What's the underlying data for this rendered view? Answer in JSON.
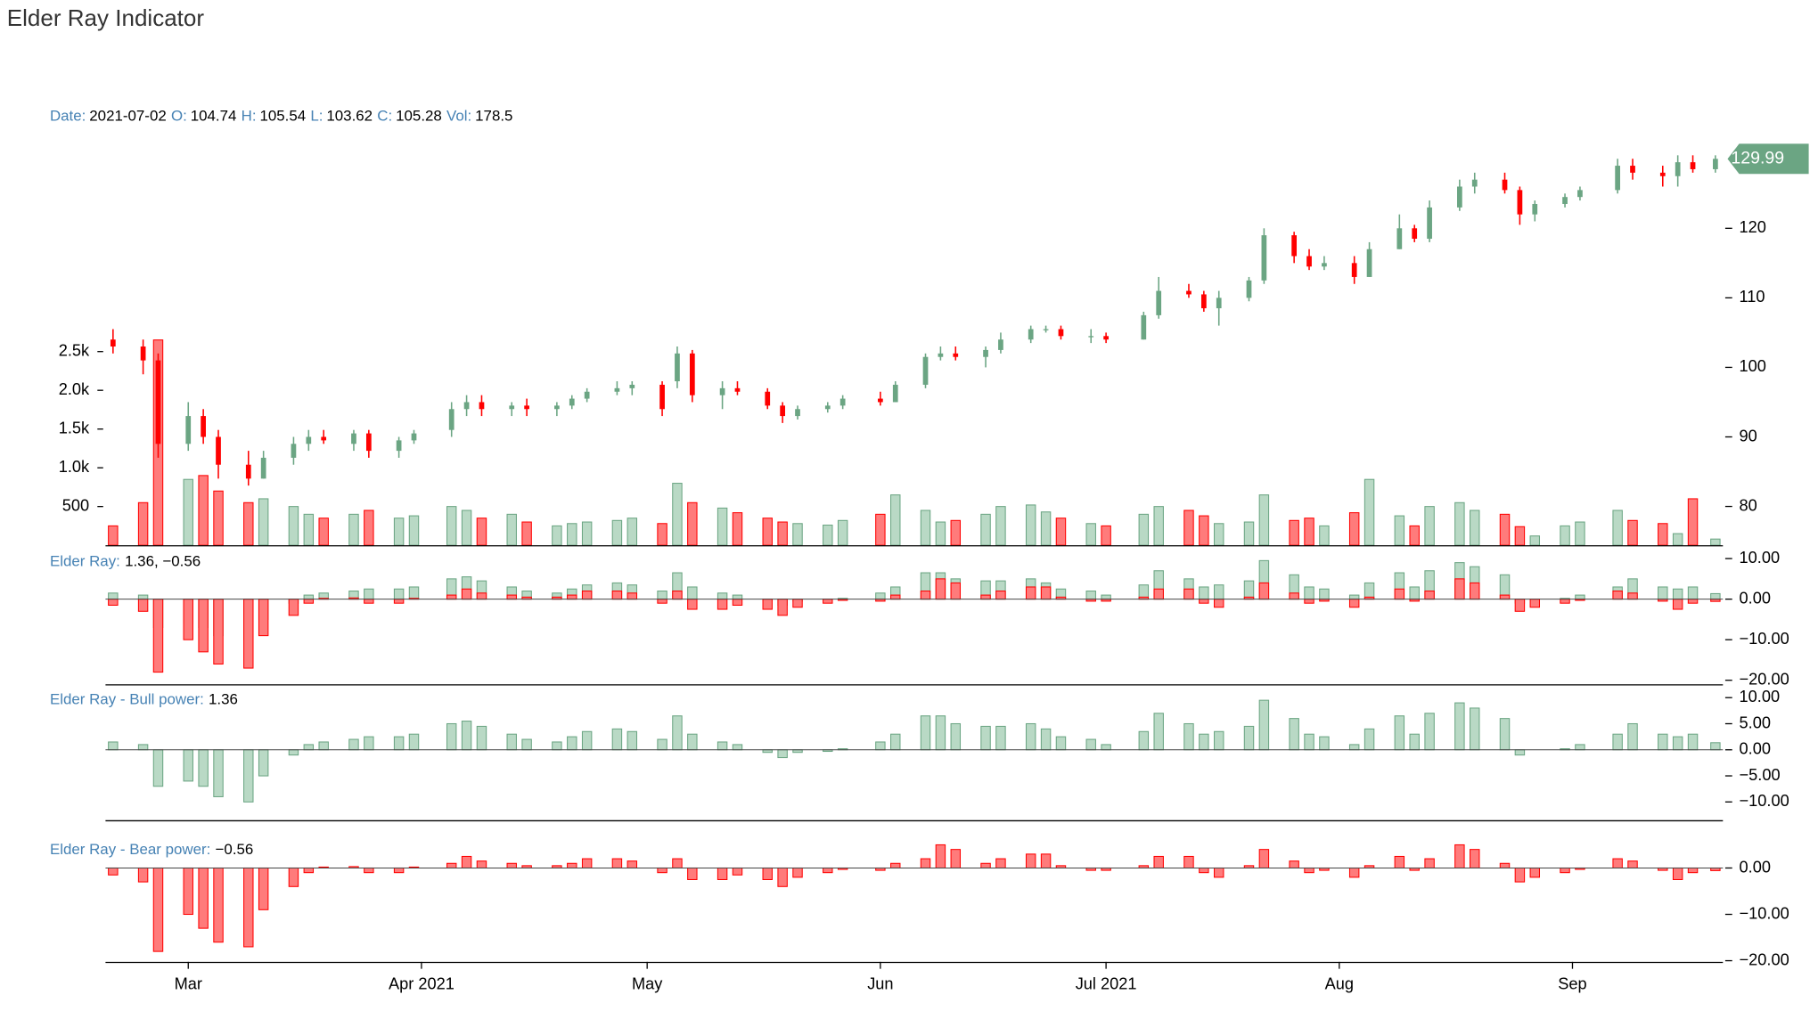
{
  "chart_data": {
    "type": "candlestick",
    "title": "Elder Ray Indicator",
    "header": [
      {
        "label": "Date:",
        "value": "2021-07-02"
      },
      {
        "label": "O:",
        "value": 104.74
      },
      {
        "label": "H:",
        "value": 105.54
      },
      {
        "label": "L:",
        "value": 103.62
      },
      {
        "label": "C:",
        "value": 105.28
      },
      {
        "label": "Vol:",
        "value": 178.5
      }
    ],
    "up_color": "#6ba583",
    "down_color": "#ff0000",
    "x": [
      "2021-02-19",
      "2021-02-23",
      "2021-02-25",
      "2021-03-01",
      "2021-03-03",
      "2021-03-05",
      "2021-03-09",
      "2021-03-11",
      "2021-03-15",
      "2021-03-17",
      "2021-03-19",
      "2021-03-23",
      "2021-03-25",
      "2021-03-29",
      "2021-03-31",
      "2021-04-05",
      "2021-04-07",
      "2021-04-09",
      "2021-04-13",
      "2021-04-15",
      "2021-04-19",
      "2021-04-21",
      "2021-04-23",
      "2021-04-27",
      "2021-04-29",
      "2021-05-03",
      "2021-05-05",
      "2021-05-07",
      "2021-05-11",
      "2021-05-13",
      "2021-05-17",
      "2021-05-19",
      "2021-05-21",
      "2021-05-25",
      "2021-05-27",
      "2021-06-01",
      "2021-06-03",
      "2021-06-07",
      "2021-06-09",
      "2021-06-11",
      "2021-06-15",
      "2021-06-17",
      "2021-06-21",
      "2021-06-23",
      "2021-06-25",
      "2021-06-29",
      "2021-07-01",
      "2021-07-06",
      "2021-07-08",
      "2021-07-12",
      "2021-07-14",
      "2021-07-16",
      "2021-07-20",
      "2021-07-22",
      "2021-07-26",
      "2021-07-28",
      "2021-07-30",
      "2021-08-03",
      "2021-08-05",
      "2021-08-09",
      "2021-08-11",
      "2021-08-13",
      "2021-08-17",
      "2021-08-19",
      "2021-08-23",
      "2021-08-25",
      "2021-08-27",
      "2021-08-31",
      "2021-09-02",
      "2021-09-07",
      "2021-09-09",
      "2021-09-13",
      "2021-09-15",
      "2021-09-17",
      "2021-09-20"
    ],
    "xlim": [
      "2021-02-18",
      "2021-09-21"
    ],
    "xticks": [
      {
        "value": "2021-03-01",
        "label": "Mar"
      },
      {
        "value": "2021-04-01",
        "label": "Apr 2021"
      },
      {
        "value": "2021-05-01",
        "label": "May"
      },
      {
        "value": "2021-06-01",
        "label": "Jun"
      },
      {
        "value": "2021-07-01",
        "label": "Jul 2021"
      },
      {
        "value": "2021-08-01",
        "label": "Aug"
      },
      {
        "value": "2021-09-01",
        "label": "Sep"
      }
    ],
    "open": [
      104,
      103,
      101,
      89,
      93,
      90,
      86,
      84,
      87,
      89,
      90,
      89,
      90.5,
      88,
      89.5,
      91,
      94,
      95,
      94,
      94.5,
      94,
      94.5,
      95.5,
      96.5,
      97,
      97.5,
      98,
      102,
      96,
      97,
      96.5,
      94.5,
      93,
      94,
      94.5,
      95.5,
      95,
      97.5,
      101.5,
      102,
      101.5,
      102.5,
      104,
      105.5,
      105.5,
      104.5,
      104.5,
      104,
      107.5,
      111,
      110.5,
      108.5,
      110,
      112.5,
      119,
      116,
      114.5,
      115,
      113,
      117,
      120,
      118.5,
      123,
      126,
      127,
      125.5,
      122,
      123.5,
      124.5,
      125.5,
      129,
      128,
      127.5,
      129.5,
      128.5
    ],
    "high": [
      105.5,
      104,
      102,
      95,
      94,
      91,
      88,
      88,
      90,
      91,
      91,
      91,
      91,
      90,
      91,
      95,
      96,
      96,
      95,
      95.5,
      95,
      96,
      97,
      98,
      98,
      98,
      103,
      102.5,
      98,
      98,
      97,
      95,
      94.5,
      95,
      96,
      96.5,
      98,
      102,
      103,
      103,
      103,
      105,
      106,
      106,
      106,
      105.5,
      105,
      108,
      113,
      112,
      111,
      111,
      113,
      120,
      119.5,
      117,
      116,
      116,
      118,
      122,
      120.5,
      124,
      127,
      128,
      128,
      126,
      124,
      125,
      126,
      130,
      130,
      129,
      130.5,
      130.5,
      130.5
    ],
    "low": [
      102,
      99,
      87,
      88,
      89,
      84,
      83,
      84,
      86,
      88,
      89,
      88,
      87,
      87,
      89,
      90,
      93,
      93,
      93,
      93,
      93,
      94,
      95,
      96,
      96,
      93,
      97,
      95,
      94,
      96,
      94,
      92,
      92.5,
      93.5,
      94,
      94.5,
      95,
      97,
      101,
      101,
      100,
      102,
      103.5,
      105,
      104,
      103.5,
      103.5,
      104,
      107,
      110,
      108,
      106,
      109.5,
      112,
      115,
      114,
      114,
      112,
      113,
      117,
      118,
      118,
      122.5,
      125,
      125,
      120.5,
      121,
      123,
      124,
      125,
      127,
      126,
      126,
      128,
      128
    ],
    "close": [
      103,
      101,
      89,
      93,
      90,
      86,
      84,
      87,
      89,
      90,
      89.5,
      90.5,
      88,
      89.5,
      90.5,
      94,
      95,
      94,
      94.5,
      94,
      94.5,
      95.5,
      96.5,
      97,
      97.5,
      94,
      102,
      96,
      97,
      96.5,
      94.5,
      93,
      94,
      94.5,
      95.5,
      95,
      97.5,
      101.5,
      102,
      101.5,
      102.5,
      104,
      105.5,
      105.5,
      104.5,
      104.5,
      104,
      107.5,
      111,
      110.5,
      108.5,
      110,
      112.5,
      119,
      116,
      114.5,
      115,
      113,
      117,
      120,
      118.5,
      123,
      126,
      127,
      125.5,
      122,
      123.5,
      124.5,
      125.5,
      129,
      128,
      127.5,
      129.5,
      128.5,
      129.99
    ],
    "ylim": [
      73.5,
      131.5
    ],
    "yticks": [
      80,
      90,
      100,
      110,
      120
    ],
    "volume": {
      "values": [
        250,
        550,
        2650,
        850,
        900,
        700,
        550,
        600,
        500,
        400,
        350,
        400,
        450,
        350,
        380,
        500,
        450,
        350,
        400,
        300,
        250,
        280,
        300,
        320,
        350,
        280,
        800,
        550,
        480,
        420,
        350,
        300,
        280,
        260,
        320,
        400,
        650,
        450,
        300,
        320,
        400,
        500,
        520,
        430,
        350,
        280,
        250,
        400,
        500,
        450,
        380,
        280,
        300,
        650,
        320,
        350,
        250,
        420,
        850,
        380,
        250,
        500,
        550,
        450,
        400,
        240,
        120,
        250,
        300,
        450,
        320,
        280,
        150,
        600,
        80
      ],
      "ylim": [
        0,
        2700
      ],
      "yticks": [
        500,
        {
          "value": 1000,
          "label": "1.0k"
        },
        {
          "value": 1500,
          "label": "1.5k"
        },
        {
          "value": 2000,
          "label": "2.0k"
        },
        {
          "value": 2500,
          "label": "2.5k"
        }
      ]
    },
    "bull_power": [
      1.5,
      1,
      -7,
      -6,
      -7,
      -9,
      -10,
      -5,
      -1,
      1,
      1.5,
      2,
      2.5,
      2.5,
      3,
      5,
      5.5,
      4.5,
      3,
      2,
      1.5,
      2.5,
      3.5,
      4,
      3.5,
      2,
      6.5,
      3,
      1.5,
      1,
      -0.5,
      -1.5,
      -0.5,
      -0.3,
      0.2,
      1.5,
      3,
      6.5,
      6.5,
      5,
      4.5,
      4.5,
      5,
      4,
      2.5,
      2,
      1,
      3.5,
      7,
      5,
      3,
      3.5,
      4.5,
      9.5,
      6,
      3,
      2.5,
      1,
      4,
      6.5,
      3,
      7,
      9,
      8,
      6,
      -1,
      0,
      0.2,
      1,
      3,
      5,
      3,
      2.5,
      3,
      1.36
    ],
    "bear_power": [
      -1.5,
      -3,
      -18,
      -10,
      -13,
      -16,
      -17,
      -9,
      -4,
      -1,
      0.2,
      0.3,
      -1,
      -1,
      0.2,
      1,
      2.5,
      1.5,
      1,
      0.5,
      0.5,
      1,
      2,
      2,
      1.5,
      -1,
      2,
      -2.5,
      -2.5,
      -1.5,
      -2.5,
      -4,
      -2,
      -1,
      -0.3,
      -0.5,
      1,
      2,
      5,
      4,
      1,
      2,
      3,
      3,
      0.5,
      -0.5,
      -0.5,
      0.5,
      2.5,
      2.5,
      -1,
      -2,
      0.5,
      4,
      1.5,
      -1,
      -0.5,
      -2,
      0.5,
      2.5,
      -0.5,
      2,
      5,
      4,
      1,
      -3,
      -2,
      -1,
      -0.3,
      2,
      1.5,
      -0.5,
      -2.5,
      -1,
      -0.56
    ],
    "panels": [
      {
        "label": "Elder Ray:",
        "readout": "1.36, −0.56",
        "series": [
          "bull_power",
          "bear_power"
        ],
        "colors": [
          "#6ba583",
          "#ff0000"
        ],
        "ylim": [
          -21,
          11
        ],
        "yticks": [
          {
            "value": 10,
            "label": "10.00"
          },
          {
            "value": 0,
            "label": "0.00"
          },
          {
            "value": -10,
            "label": "−10.00"
          },
          {
            "value": -20,
            "label": "−20.00"
          }
        ]
      },
      {
        "label": "Elder Ray - Bull power:",
        "readout": "1.36",
        "series": [
          "bull_power"
        ],
        "colors": [
          "#6ba583"
        ],
        "ylim": [
          -13.5,
          11
        ],
        "yticks": [
          {
            "value": 10,
            "label": "10.00"
          },
          {
            "value": 5,
            "label": "5.00"
          },
          {
            "value": 0,
            "label": "0.00"
          },
          {
            "value": -5,
            "label": "−5.00"
          },
          {
            "value": -10,
            "label": "−10.00"
          }
        ]
      },
      {
        "label": "Elder Ray - Bear power:",
        "readout": "−0.56",
        "series": [
          "bear_power"
        ],
        "colors": [
          "#ff0000"
        ],
        "ylim": [
          -20.25,
          5.5
        ],
        "yticks": [
          {
            "value": 0,
            "label": "0.00"
          },
          {
            "value": -10,
            "label": "−10.00"
          },
          {
            "value": -20,
            "label": "−20.00"
          }
        ]
      }
    ]
  }
}
